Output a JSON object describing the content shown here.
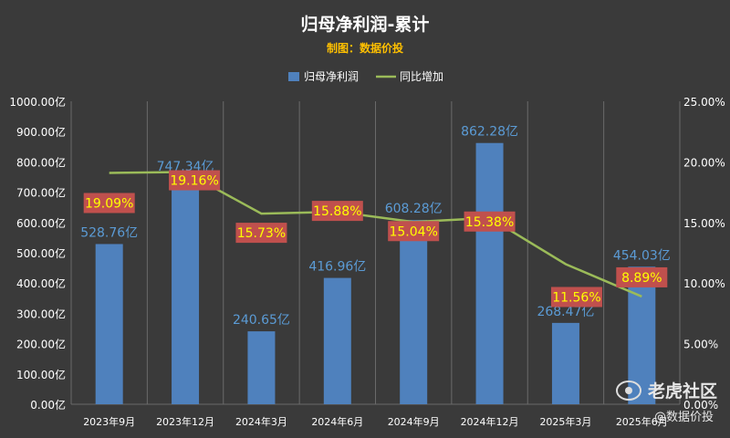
{
  "chart_data": {
    "type": "bar",
    "title": "归母净利润-累计",
    "subtitle": "制图：数据价投",
    "categories": [
      "2023年9月",
      "2023年12月",
      "2024年3月",
      "2024年6月",
      "2024年9月",
      "2024年12月",
      "2025年3月",
      "2025年6月"
    ],
    "series": [
      {
        "name": "归母净利润",
        "type": "bar",
        "axis": "left",
        "values": [
          528.76,
          747.34,
          240.65,
          416.96,
          608.28,
          862.28,
          268.47,
          454.03
        ],
        "labels": [
          "528.76亿",
          "747.34亿",
          "240.65亿",
          "416.96亿",
          "608.28亿",
          "862.28亿",
          "268.47亿",
          "454.03亿"
        ],
        "color": "#4f81bd"
      },
      {
        "name": "同比增加",
        "type": "line",
        "axis": "right",
        "values": [
          19.09,
          19.16,
          15.73,
          15.88,
          15.04,
          15.38,
          11.56,
          8.89
        ],
        "labels": [
          "19.09%",
          "19.16%",
          "15.73%",
          "15.88%",
          "15.04%",
          "15.38%",
          "11.56%",
          "8.89%"
        ],
        "color": "#9bbb59"
      }
    ],
    "y_left": {
      "range": [
        0,
        1000
      ],
      "ticks": [
        "0.00亿",
        "100.00亿",
        "200.00亿",
        "300.00亿",
        "400.00亿",
        "500.00亿",
        "600.00亿",
        "700.00亿",
        "800.00亿",
        "900.00亿",
        "1000.00亿"
      ]
    },
    "y_right": {
      "range": [
        0,
        25
      ],
      "ticks": [
        "0.00%",
        "5.00%",
        "10.00%",
        "15.00%",
        "20.00%",
        "25.00%"
      ]
    },
    "legend_position": "top",
    "grid": "vertical"
  },
  "watermark": {
    "brand": "老虎社区",
    "handle": "@数据价投",
    "icon": "tiger-logo-icon"
  },
  "colors": {
    "background": "#3a3a3a",
    "title": "#ffffff",
    "subtitle": "#ffc000",
    "text": "#ffffff",
    "bar_label": "#5b9bd5",
    "pct_label_bg": "#c0504d",
    "pct_label_text": "#ffff00",
    "grid": "#6a6a6a"
  }
}
